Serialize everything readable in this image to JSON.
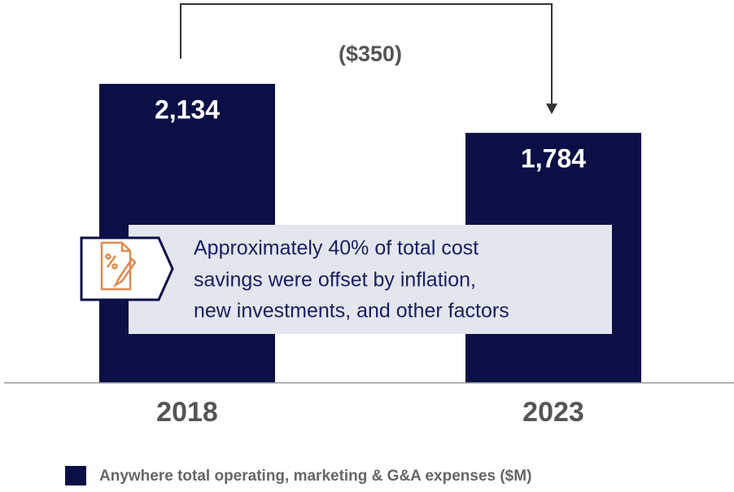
{
  "chart_data": {
    "type": "bar",
    "categories": [
      "2018",
      "2023"
    ],
    "series": [
      {
        "name": "Anywhere total operating, marketing & G&A expenses ($M)",
        "color": "#0a0f45",
        "values": [
          2134,
          1784
        ],
        "value_labels": [
          "2,134",
          "1,784"
        ]
      }
    ],
    "ylim": [
      0,
      2500
    ],
    "legend": "bottom",
    "annotations": {
      "change": "($350)",
      "callout": [
        "Approximately 40% of total cost",
        "savings were offset by inflation,",
        "new investments, and other factors"
      ]
    }
  }
}
